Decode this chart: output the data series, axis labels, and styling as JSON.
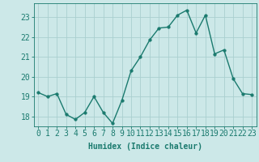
{
  "x": [
    0,
    1,
    2,
    3,
    4,
    5,
    6,
    7,
    8,
    9,
    10,
    11,
    12,
    13,
    14,
    15,
    16,
    17,
    18,
    19,
    20,
    21,
    22,
    23
  ],
  "y": [
    19.2,
    19.0,
    19.15,
    18.1,
    17.85,
    18.2,
    19.0,
    18.2,
    17.65,
    18.8,
    20.3,
    21.0,
    21.85,
    22.45,
    22.5,
    23.1,
    23.35,
    22.2,
    23.1,
    21.15,
    21.35,
    19.9,
    19.15,
    19.1
  ],
  "line_color": "#1a7a6e",
  "marker_color": "#1a7a6e",
  "bg_color": "#cce8e8",
  "grid_color": "#aacfcf",
  "axis_label_color": "#1a7a6e",
  "tick_color": "#1a7a6e",
  "xlabel": "Humidex (Indice chaleur)",
  "ylim": [
    17.5,
    23.7
  ],
  "yticks": [
    18,
    19,
    20,
    21,
    22,
    23
  ],
  "xtick_labels": [
    "0",
    "1",
    "2",
    "3",
    "4",
    "5",
    "6",
    "7",
    "8",
    "9",
    "10",
    "11",
    "12",
    "13",
    "14",
    "15",
    "16",
    "17",
    "18",
    "19",
    "20",
    "21",
    "22",
    "23"
  ],
  "xlabel_fontsize": 7,
  "tick_fontsize": 7,
  "line_width": 1.0,
  "marker_size": 2.5
}
